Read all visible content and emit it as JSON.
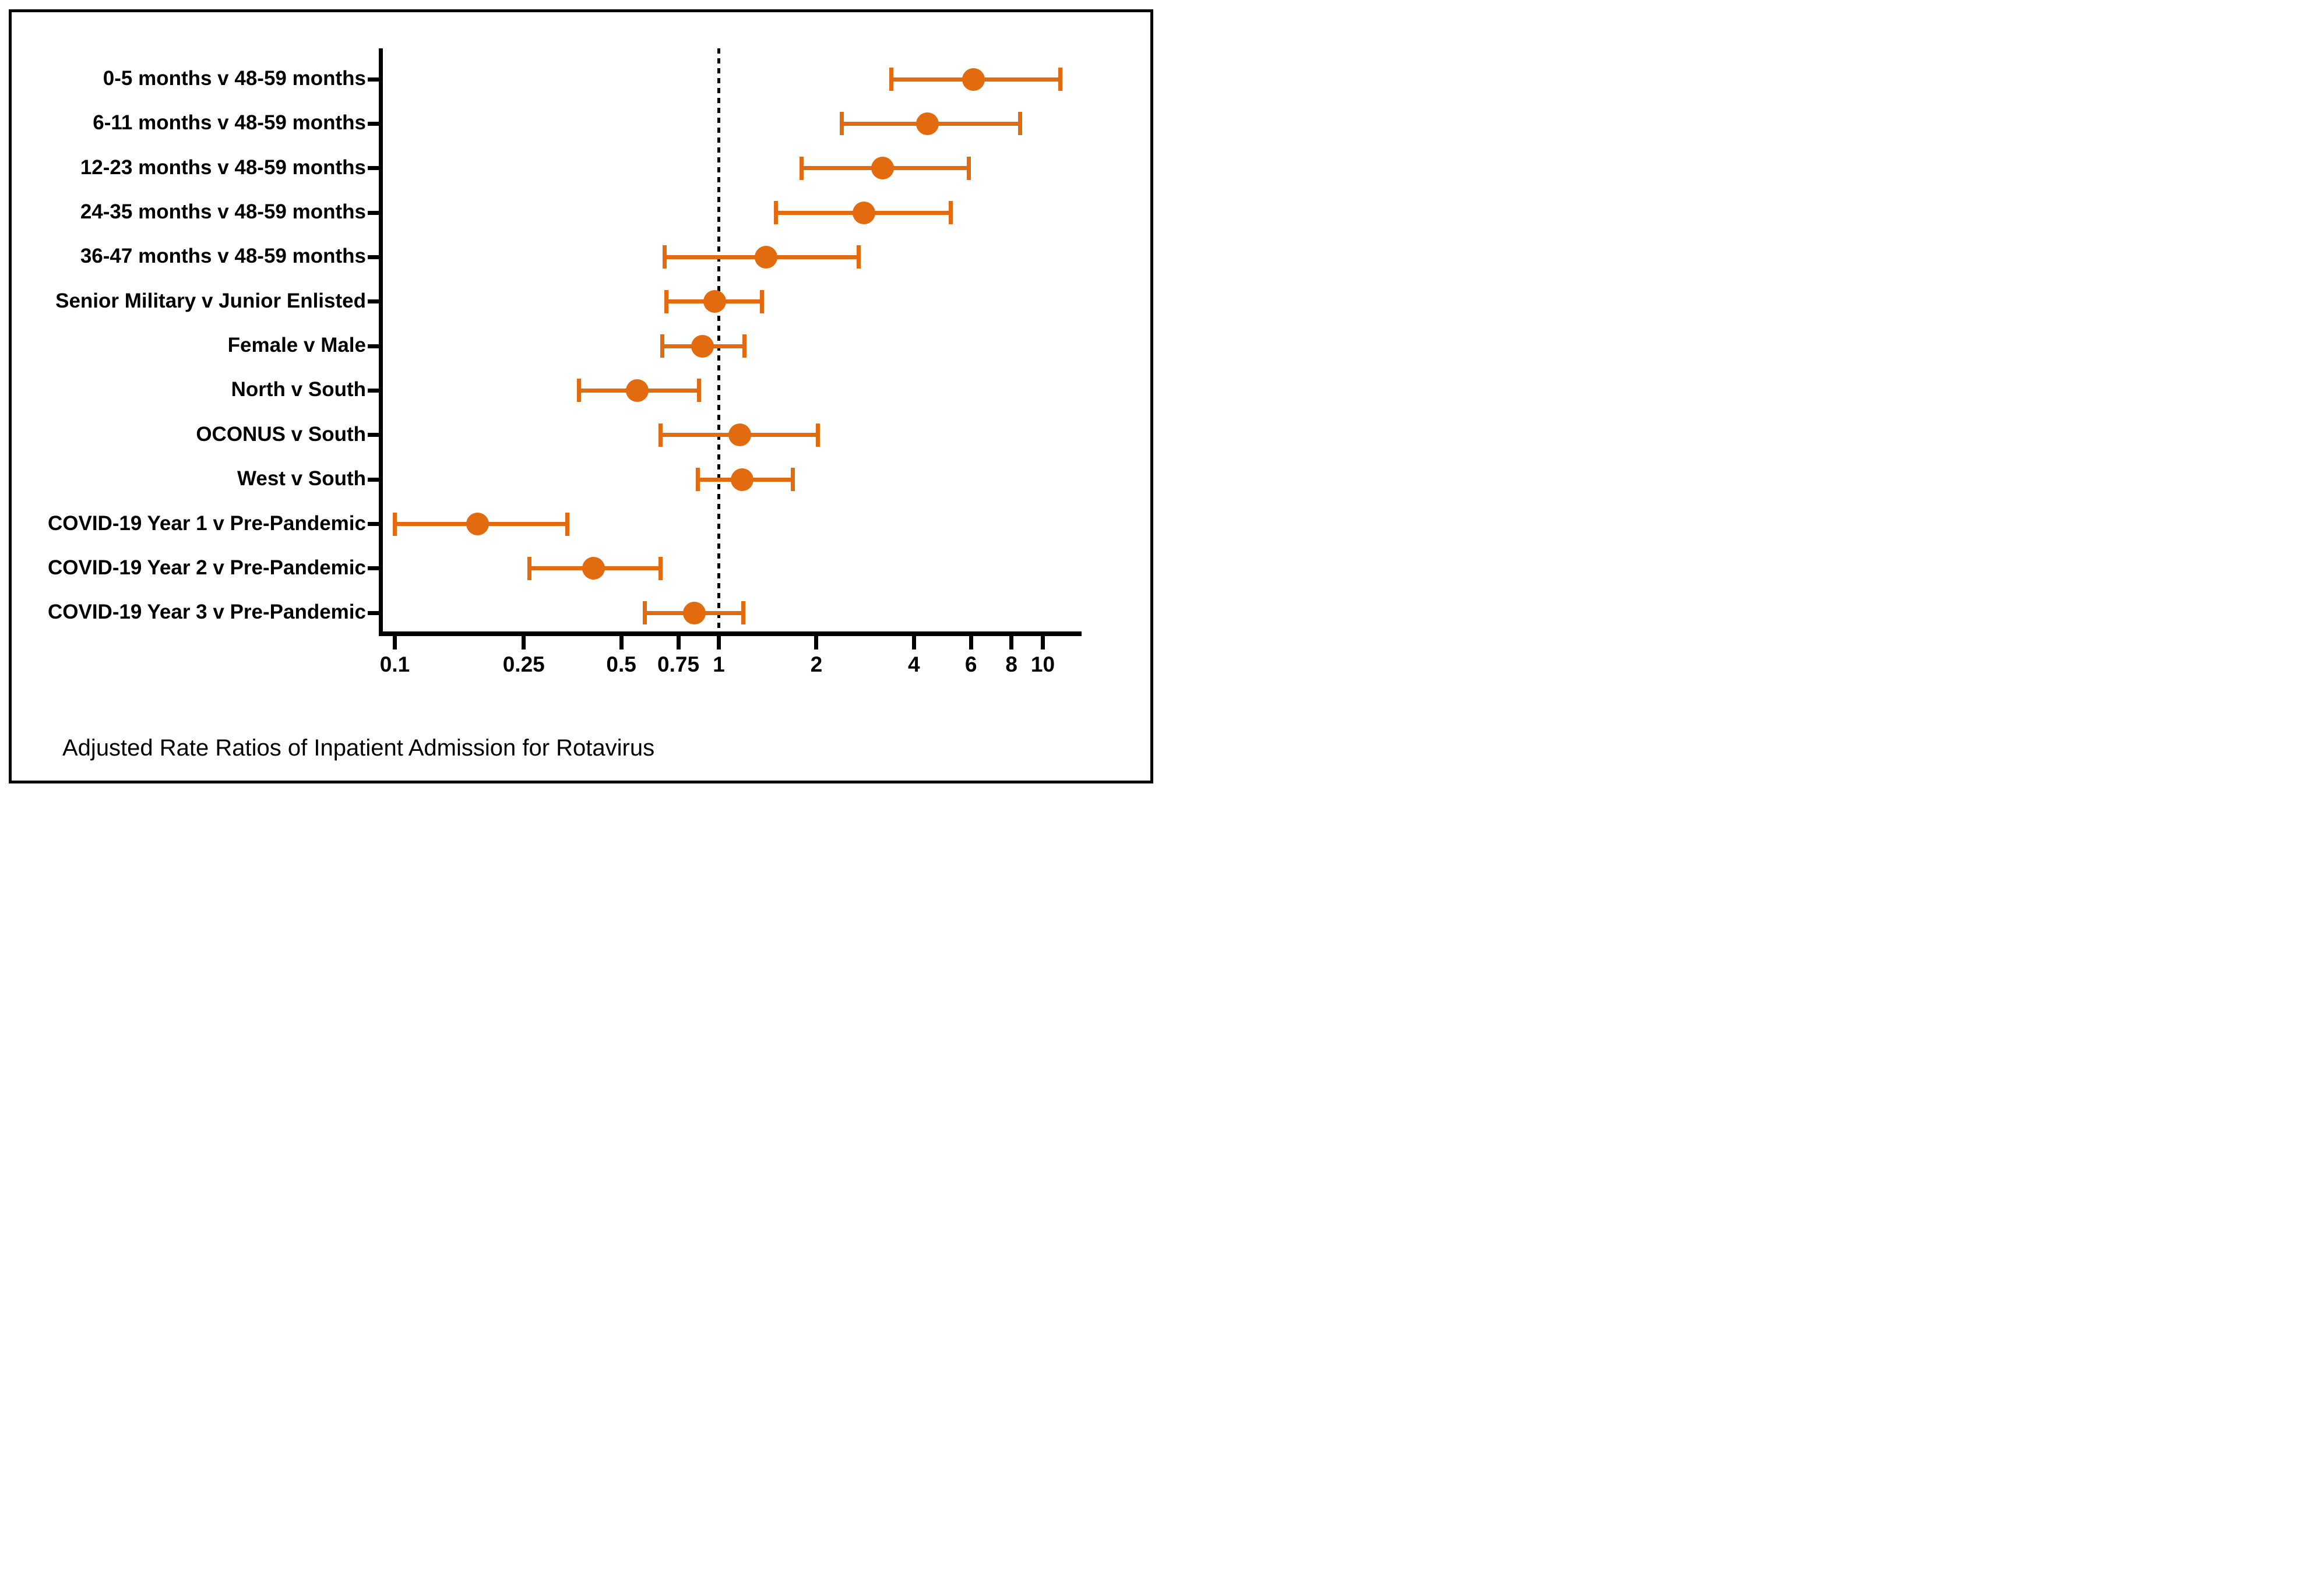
{
  "chart_data": {
    "type": "scatter",
    "subtype": "forest-plot",
    "title": "Adjusted Rate Ratios of Inpatient Admission for Rotavirus",
    "x_scale": "log10",
    "x_range": [
      0.09,
      13.2
    ],
    "x_ticks": [
      0.1,
      0.25,
      0.5,
      0.75,
      1,
      2,
      4,
      6,
      8,
      10
    ],
    "x_tick_labels": [
      "0.1",
      "0.25",
      "0.5",
      "0.75",
      "1",
      "2",
      "4",
      "6",
      "8",
      "10"
    ],
    "reference_line_x": 1,
    "grid": false,
    "legend": "none",
    "marker_color": "#E26A0F",
    "axis_color": "#000000",
    "rows": [
      {
        "label": "0-5 months v 48-59 months",
        "value": 6.1,
        "ci_low": 3.4,
        "ci_high": 11.3
      },
      {
        "label": "6-11 months v 48-59 months",
        "value": 4.4,
        "ci_low": 2.4,
        "ci_high": 8.5
      },
      {
        "label": "12-23 months v 48-59 months",
        "value": 3.2,
        "ci_low": 1.8,
        "ci_high": 5.9
      },
      {
        "label": "24-35 months v 48-59 months",
        "value": 2.8,
        "ci_low": 1.5,
        "ci_high": 5.2
      },
      {
        "label": "36-47 months v 48-59 months",
        "value": 1.4,
        "ci_low": 0.68,
        "ci_high": 2.7
      },
      {
        "label": "Senior Military v Junior Enlisted",
        "value": 0.97,
        "ci_low": 0.69,
        "ci_high": 1.36
      },
      {
        "label": "Female v Male",
        "value": 0.89,
        "ci_low": 0.67,
        "ci_high": 1.2
      },
      {
        "label": "North v South",
        "value": 0.56,
        "ci_low": 0.37,
        "ci_high": 0.87
      },
      {
        "label": "OCONUS v South",
        "value": 1.16,
        "ci_low": 0.66,
        "ci_high": 2.02
      },
      {
        "label": "West v South",
        "value": 1.18,
        "ci_low": 0.86,
        "ci_high": 1.69
      },
      {
        "label": "COVID-19 Year 1 v Pre-Pandemic",
        "value": 0.18,
        "ci_low": 0.1,
        "ci_high": 0.34
      },
      {
        "label": "COVID-19 Year 2 v Pre-Pandemic",
        "value": 0.41,
        "ci_low": 0.26,
        "ci_high": 0.66
      },
      {
        "label": "COVID-19 Year 3 v Pre-Pandemic",
        "value": 0.84,
        "ci_low": 0.59,
        "ci_high": 1.19
      }
    ]
  }
}
